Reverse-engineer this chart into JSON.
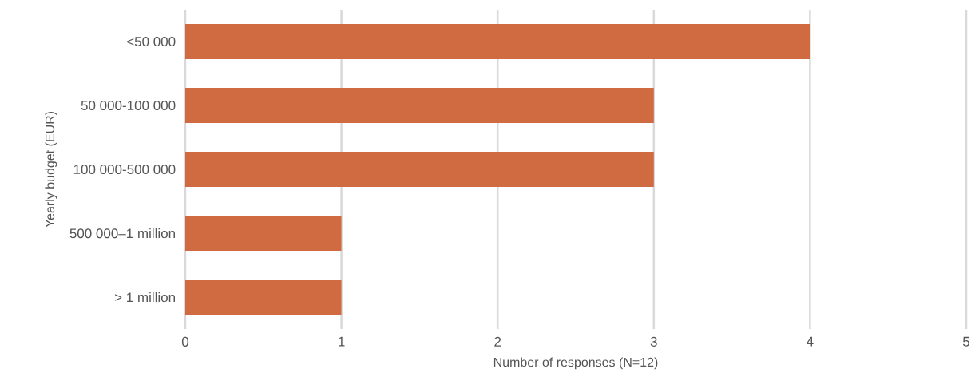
{
  "chart_data": {
    "type": "bar",
    "orientation": "horizontal",
    "xlabel": "Number of responses (N=12)",
    "ylabel": "Yearly budget (EUR)",
    "categories": [
      "<50 000",
      "50 000-100 000",
      "100 000-500 000",
      "500 000–1 million",
      "> 1 million"
    ],
    "values": [
      4,
      3,
      3,
      1,
      1
    ],
    "color": "#d06a40",
    "xlim": [
      0,
      5
    ],
    "xticks": [
      0,
      1,
      2,
      3,
      4,
      5
    ],
    "grid": "x"
  }
}
